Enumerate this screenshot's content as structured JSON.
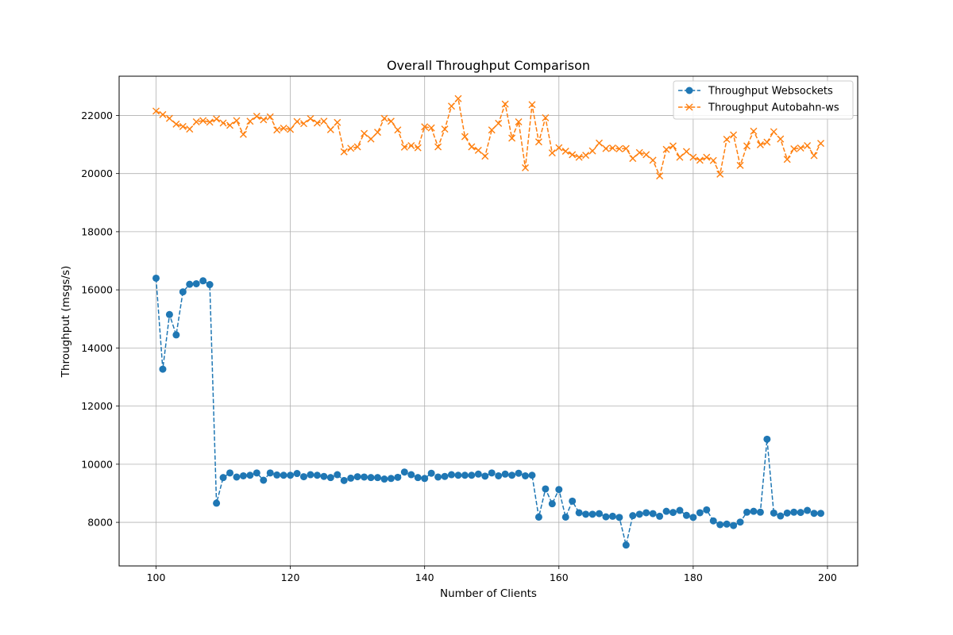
{
  "chart_data": {
    "type": "line",
    "title": "Overall Throughput Comparison",
    "xlabel": "Number of Clients",
    "ylabel": "Throughput (msgs/s)",
    "xlim": [
      94.5,
      204.5
    ],
    "ylim": [
      6500,
      23350
    ],
    "xticks": [
      100,
      120,
      140,
      160,
      180,
      200
    ],
    "yticks": [
      8000,
      10000,
      12000,
      14000,
      16000,
      18000,
      20000,
      22000
    ],
    "grid": true,
    "legend_placement": "top-right",
    "x": [
      100,
      101,
      102,
      103,
      104,
      105,
      106,
      107,
      108,
      109,
      110,
      111,
      112,
      113,
      114,
      115,
      116,
      117,
      118,
      119,
      120,
      121,
      122,
      123,
      124,
      125,
      126,
      127,
      128,
      129,
      130,
      131,
      132,
      133,
      134,
      135,
      136,
      137,
      138,
      139,
      140,
      141,
      142,
      143,
      144,
      145,
      146,
      147,
      148,
      149,
      150,
      151,
      152,
      153,
      154,
      155,
      156,
      157,
      158,
      159,
      160,
      161,
      162,
      163,
      164,
      165,
      166,
      167,
      168,
      169,
      170,
      171,
      172,
      173,
      174,
      175,
      176,
      177,
      178,
      179,
      180,
      181,
      182,
      183,
      184,
      185,
      186,
      187,
      188,
      189,
      190,
      191,
      192,
      193,
      194,
      195,
      196,
      197,
      198,
      199
    ],
    "series": [
      {
        "name": "Throughput Websockets",
        "color": "#1f77b4",
        "marker": "circle",
        "values": [
          16400,
          13270,
          15150,
          14450,
          15930,
          16190,
          16210,
          16310,
          16180,
          8660,
          9540,
          9700,
          9560,
          9600,
          9620,
          9700,
          9450,
          9700,
          9630,
          9620,
          9620,
          9680,
          9570,
          9640,
          9620,
          9580,
          9540,
          9640,
          9440,
          9520,
          9570,
          9560,
          9540,
          9540,
          9490,
          9510,
          9550,
          9730,
          9640,
          9540,
          9510,
          9690,
          9560,
          9580,
          9640,
          9620,
          9620,
          9620,
          9660,
          9590,
          9700,
          9600,
          9660,
          9620,
          9690,
          9600,
          9620,
          8180,
          9150,
          8640,
          9130,
          8180,
          8730,
          8330,
          8280,
          8280,
          8300,
          8190,
          8210,
          8170,
          7220,
          8230,
          8280,
          8330,
          8300,
          8210,
          8380,
          8340,
          8410,
          8240,
          8170,
          8330,
          8430,
          8050,
          7920,
          7940,
          7890,
          8010,
          8350,
          8380,
          8350,
          10860,
          8320,
          8220,
          8320,
          8350,
          8340,
          8410,
          8310,
          8310
        ]
      },
      {
        "name": "Throughput Autobahn-ws",
        "color": "#ff7f0e",
        "marker": "x",
        "values": [
          22150,
          22030,
          21900,
          21700,
          21620,
          21530,
          21780,
          21820,
          21770,
          21880,
          21740,
          21660,
          21820,
          21350,
          21800,
          21970,
          21850,
          21950,
          21500,
          21560,
          21520,
          21790,
          21720,
          21890,
          21740,
          21800,
          21510,
          21760,
          20750,
          20870,
          20920,
          21380,
          21190,
          21420,
          21900,
          21800,
          21500,
          20910,
          20960,
          20890,
          21610,
          21570,
          20920,
          21530,
          22320,
          22580,
          21270,
          20920,
          20800,
          20600,
          21500,
          21730,
          22390,
          21220,
          21780,
          20200,
          22370,
          21090,
          21920,
          20710,
          20890,
          20770,
          20650,
          20560,
          20630,
          20780,
          21050,
          20860,
          20880,
          20850,
          20860,
          20520,
          20720,
          20650,
          20460,
          19920,
          20830,
          20950,
          20560,
          20760,
          20560,
          20460,
          20560,
          20450,
          19980,
          21180,
          21330,
          20280,
          20950,
          21460,
          20990,
          21080,
          21440,
          21190,
          20490,
          20850,
          20880,
          20960,
          20620,
          21040
        ]
      }
    ]
  }
}
